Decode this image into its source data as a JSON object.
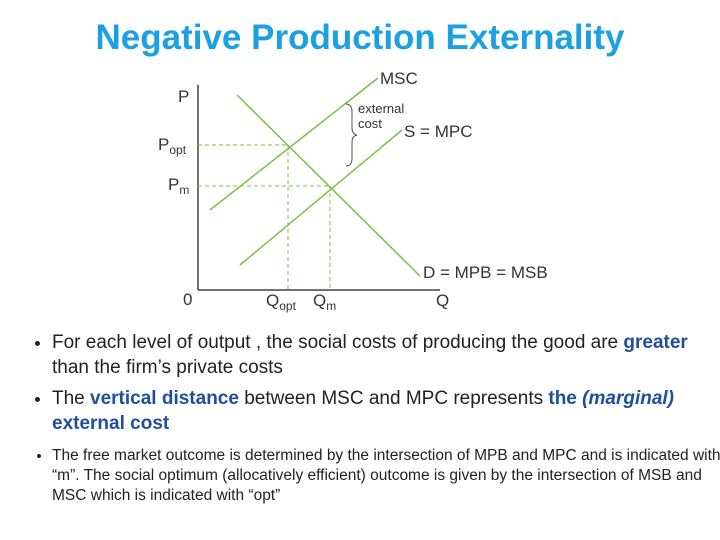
{
  "title": "Negative Production Externality",
  "diagram": {
    "y_axis": "P",
    "p_opt": {
      "main": "P",
      "sub": "opt"
    },
    "p_m": {
      "main": "P",
      "sub": "m"
    },
    "origin": "0",
    "q_opt": {
      "main": "Q",
      "sub": "opt"
    },
    "q_m": {
      "main": "Q",
      "sub": "m"
    },
    "x_axis": "Q",
    "msc": "MSC",
    "external_cost": [
      "external",
      "cost"
    ],
    "supply": "S = MPC",
    "demand": "D = MPB = MSB"
  },
  "bullets": [
    [
      "For each level of output , the social costs of producing the good are ",
      "greater",
      " than the firm’s private costs"
    ],
    [
      "The ",
      "vertical distance",
      " between MSC and MPC represents ",
      "the ",
      "(marginal)",
      " external cost"
    ],
    [
      "The free market outcome is determined by the intersection of MPB and MPC and is indicated with “m”.  The social optimum (allocatively efficient) outcome is given by the intersection of MSB and MSC which is indicated with “opt”"
    ]
  ]
}
